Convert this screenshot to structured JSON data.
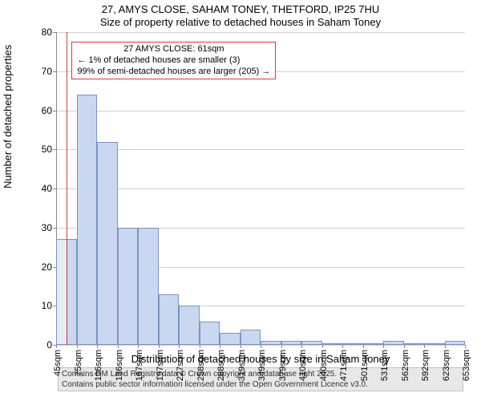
{
  "title_main": "27, AMYS CLOSE, SAHAM TONEY, THETFORD, IP25 7HU",
  "title_sub": "Size of property relative to detached houses in Saham Toney",
  "y_axis_label": "Number of detached properties",
  "x_axis_label": "Distribution of detached houses by size in Saham Toney",
  "chart": {
    "type": "histogram",
    "background_color": "#ffffff",
    "grid_color": "#d0d0d0",
    "axis_color": "#888888",
    "text_color": "#000000",
    "ylim": [
      0,
      80
    ],
    "ytick_step": 10,
    "yticks": [
      0,
      10,
      20,
      30,
      40,
      50,
      60,
      70,
      80
    ],
    "xtick_labels": [
      "45sqm",
      "75sqm",
      "106sqm",
      "136sqm",
      "167sqm",
      "197sqm",
      "227sqm",
      "258sqm",
      "288sqm",
      "319sqm",
      "349sqm",
      "379sqm",
      "410sqm",
      "440sqm",
      "471sqm",
      "501sqm",
      "531sqm",
      "562sqm",
      "592sqm",
      "623sqm",
      "653sqm"
    ],
    "bar_values": [
      27,
      64,
      52,
      30,
      30,
      13,
      10,
      6,
      3,
      4,
      1,
      1,
      1,
      0,
      0,
      0,
      1,
      0,
      0,
      1
    ],
    "bar_fill_full": "#c9d8f0",
    "bar_fill_left_of_marker": "#e6eaf3",
    "bar_border": "#7a93c4",
    "bar_border_width": 1,
    "bar_gap_ratio": 0.0,
    "marker_value_sqm": 61,
    "marker_color": "#d43b3b",
    "marker_width": 1
  },
  "annotation": {
    "line1": "27 AMYS CLOSE: 61sqm",
    "line2": "← 1% of detached houses are smaller (3)",
    "line3": "99% of semi-detached houses are larger (205) →",
    "border_color": "#d43b3b",
    "background_color": "#ffffff",
    "font_size": 11
  },
  "footer": {
    "line1": "Contains HM Land Registry data © Crown copyright and database right 2025.",
    "line2": "Contains public sector information licensed under the Open Government Licence v3.0.",
    "background_color": "#e8e8e8",
    "border_color": "#c0c0c0"
  }
}
